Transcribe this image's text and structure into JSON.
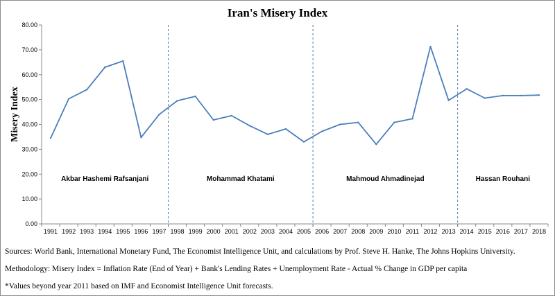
{
  "chart_data": {
    "type": "line",
    "title": "Iran's Misery Index",
    "ylabel": "Misery Index",
    "xlabel": "",
    "ylim": [
      0,
      80
    ],
    "y_ticks": [
      "0.00",
      "10.00",
      "20.00",
      "30.00",
      "40.00",
      "50.00",
      "60.00",
      "70.00",
      "80.00"
    ],
    "categories": [
      "1991",
      "1992",
      "1993",
      "1994",
      "1995",
      "1996",
      "1997",
      "1998",
      "1999",
      "2000",
      "2001",
      "2002",
      "2003",
      "2004",
      "2005",
      "2006",
      "2007",
      "2008",
      "2009",
      "2010",
      "2011",
      "2012",
      "2013",
      "2014",
      "2015",
      "2016",
      "2017",
      "2018"
    ],
    "series": [
      {
        "values": [
          34.5,
          50.3,
          54.0,
          63.0,
          65.5,
          34.8,
          44.0,
          49.5,
          51.3,
          41.8,
          43.5,
          39.5,
          36.0,
          38.2,
          33.0,
          37.2,
          40.0,
          40.8,
          32.0,
          40.8,
          42.3,
          71.3,
          49.7,
          54.3,
          50.6,
          51.6,
          51.6,
          51.8
        ],
        "color": "#4a7ebb"
      }
    ],
    "grid": false,
    "eras": [
      {
        "name": "Akbar Hashemi Rafsanjani",
        "from": "1991",
        "to": "1997"
      },
      {
        "name": "Mohammad Khatami",
        "from": "1997",
        "to": "2005"
      },
      {
        "name": "Mahmoud Ahmadinejad",
        "from": "2005",
        "to": "2013"
      },
      {
        "name": "Hassan Rouhani",
        "from": "2013",
        "to": "2018"
      }
    ],
    "divider_years": [
      "1997",
      "2005",
      "2013"
    ]
  },
  "notes": {
    "sources": "Sources: World Bank, International Monetary Fund, The Economist Intelligence Unit,  and calculations  by Prof. Steve H. Hanke, The Johns Hopkins University.",
    "methodology": "Methodology:  Misery Index = Inflation Rate (End of Year) + Bank's Lending Rates + Unemployment  Rate - Actual % Change  in GDP per capita",
    "forecast": "*Values beyond year 2011 based on IMF and Economist  Intelligence  Unit forecasts."
  },
  "colors": {
    "line": "#4a7ebb",
    "divider": "#4a7ebb",
    "axis": "#888888"
  }
}
